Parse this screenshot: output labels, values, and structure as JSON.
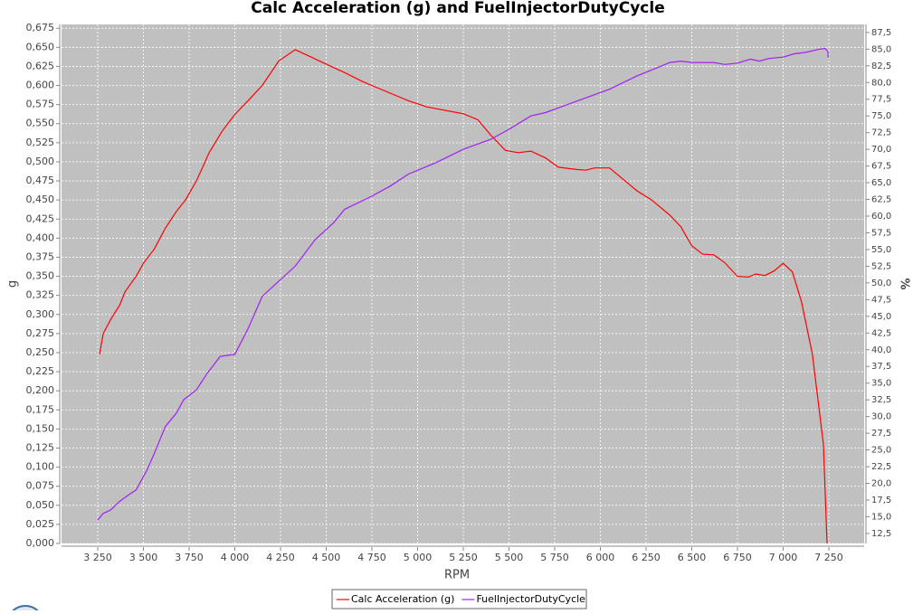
{
  "chart_data": {
    "type": "line",
    "title": "Calc Acceleration (g) and FuelInjectorDutyCycle",
    "x_label": "RPM",
    "y_label": "g",
    "y2_label": "%",
    "grid": true,
    "legend": "bottom",
    "xlim": [
      3052,
      7443
    ],
    "ylim": [
      0,
      0.68
    ],
    "y2lim": [
      11,
      88.7
    ],
    "xticks": [
      {
        "value": 3250,
        "label": "3 250"
      },
      {
        "value": 3500,
        "label": "3 500"
      },
      {
        "value": 3750,
        "label": "3 750"
      },
      {
        "value": 4000,
        "label": "4 000"
      },
      {
        "value": 4250,
        "label": "4 250"
      },
      {
        "value": 4500,
        "label": "4 500"
      },
      {
        "value": 4750,
        "label": "4 750"
      },
      {
        "value": 5000,
        "label": "5 000"
      },
      {
        "value": 5250,
        "label": "5 250"
      },
      {
        "value": 5500,
        "label": "5 500"
      },
      {
        "value": 5750,
        "label": "5 750"
      },
      {
        "value": 6000,
        "label": "6 000"
      },
      {
        "value": 6250,
        "label": "6 250"
      },
      {
        "value": 6500,
        "label": "6 500"
      },
      {
        "value": 6750,
        "label": "6 750"
      },
      {
        "value": 7000,
        "label": "7 000"
      },
      {
        "value": 7250,
        "label": "7 250"
      }
    ],
    "yticks": [
      {
        "value": 0,
        "label": "0,000"
      },
      {
        "value": 0.025,
        "label": "0,025"
      },
      {
        "value": 0.05,
        "label": "0,050"
      },
      {
        "value": 0.075,
        "label": "0,075"
      },
      {
        "value": 0.1,
        "label": "0,100"
      },
      {
        "value": 0.125,
        "label": "0,125"
      },
      {
        "value": 0.15,
        "label": "0,150"
      },
      {
        "value": 0.175,
        "label": "0,175"
      },
      {
        "value": 0.2,
        "label": "0,200"
      },
      {
        "value": 0.225,
        "label": "0,225"
      },
      {
        "value": 0.25,
        "label": "0,250"
      },
      {
        "value": 0.275,
        "label": "0,275"
      },
      {
        "value": 0.3,
        "label": "0,300"
      },
      {
        "value": 0.325,
        "label": "0,325"
      },
      {
        "value": 0.35,
        "label": "0,350"
      },
      {
        "value": 0.375,
        "label": "0,375"
      },
      {
        "value": 0.4,
        "label": "0,400"
      },
      {
        "value": 0.425,
        "label": "0,425"
      },
      {
        "value": 0.45,
        "label": "0,450"
      },
      {
        "value": 0.475,
        "label": "0,475"
      },
      {
        "value": 0.5,
        "label": "0,500"
      },
      {
        "value": 0.525,
        "label": "0,525"
      },
      {
        "value": 0.55,
        "label": "0,550"
      },
      {
        "value": 0.575,
        "label": "0,575"
      },
      {
        "value": 0.6,
        "label": "0,600"
      },
      {
        "value": 0.625,
        "label": "0,625"
      },
      {
        "value": 0.65,
        "label": "0,650"
      },
      {
        "value": 0.675,
        "label": "0,675"
      }
    ],
    "y2ticks": [
      {
        "value": 12.5,
        "label": "12,5"
      },
      {
        "value": 15,
        "label": "15,0"
      },
      {
        "value": 17.5,
        "label": "17,5"
      },
      {
        "value": 20,
        "label": "20,0"
      },
      {
        "value": 22.5,
        "label": "22,5"
      },
      {
        "value": 25,
        "label": "25,0"
      },
      {
        "value": 27.5,
        "label": "27,5"
      },
      {
        "value": 30,
        "label": "30,0"
      },
      {
        "value": 32.5,
        "label": "32,5"
      },
      {
        "value": 35,
        "label": "35,0"
      },
      {
        "value": 37.5,
        "label": "37,5"
      },
      {
        "value": 40,
        "label": "40,0"
      },
      {
        "value": 42.5,
        "label": "42,5"
      },
      {
        "value": 45,
        "label": "45,0"
      },
      {
        "value": 47.5,
        "label": "47,5"
      },
      {
        "value": 50,
        "label": "50,0"
      },
      {
        "value": 52.5,
        "label": "52,5"
      },
      {
        "value": 55,
        "label": "55,0"
      },
      {
        "value": 57.5,
        "label": "57,5"
      },
      {
        "value": 60,
        "label": "60,0"
      },
      {
        "value": 62.5,
        "label": "62,5"
      },
      {
        "value": 65,
        "label": "65,0"
      },
      {
        "value": 67.5,
        "label": "67,5"
      },
      {
        "value": 70,
        "label": "70,0"
      },
      {
        "value": 72.5,
        "label": "72,5"
      },
      {
        "value": 75,
        "label": "75,0"
      },
      {
        "value": 77.5,
        "label": "77,5"
      },
      {
        "value": 80,
        "label": "80,0"
      },
      {
        "value": 82.5,
        "label": "82,5"
      },
      {
        "value": 85,
        "label": "85,0"
      },
      {
        "value": 87.5,
        "label": "87,5"
      }
    ],
    "series": [
      {
        "name": "Calc Acceleration (g)",
        "color": "#ff0000",
        "x": [
          3260,
          3280,
          3320,
          3370,
          3400,
          3460,
          3500,
          3560,
          3620,
          3680,
          3730,
          3790,
          3860,
          3930,
          4000,
          4080,
          4150,
          4240,
          4330,
          4420,
          4500,
          4600,
          4700,
          4850,
          4950,
          5050,
          5250,
          5330,
          5400,
          5480,
          5550,
          5620,
          5700,
          5770,
          5870,
          5920,
          5970,
          6050,
          6200,
          6280,
          6380,
          6440,
          6500,
          6560,
          6620,
          6680,
          6750,
          6810,
          6850,
          6900,
          6950,
          7000,
          7050,
          7100,
          7160,
          7220,
          7240
        ],
        "values": [
          0.248,
          0.275,
          0.293,
          0.312,
          0.33,
          0.35,
          0.367,
          0.386,
          0.413,
          0.435,
          0.45,
          0.475,
          0.512,
          0.54,
          0.562,
          0.582,
          0.6,
          0.632,
          0.647,
          0.637,
          0.628,
          0.617,
          0.605,
          0.59,
          0.58,
          0.572,
          0.563,
          0.555,
          0.535,
          0.515,
          0.512,
          0.514,
          0.505,
          0.493,
          0.49,
          0.489,
          0.492,
          0.492,
          0.462,
          0.45,
          0.43,
          0.415,
          0.39,
          0.379,
          0.378,
          0.368,
          0.35,
          0.349,
          0.353,
          0.351,
          0.357,
          0.367,
          0.356,
          0.317,
          0.248,
          0.13,
          0
        ]
      },
      {
        "name": "FuelInjectorDutyCycle",
        "color": "#a020f0",
        "axis": "y2",
        "x": [
          3250,
          3280,
          3320,
          3370,
          3420,
          3460,
          3520,
          3560,
          3620,
          3680,
          3720,
          3790,
          3850,
          3920,
          4000,
          4070,
          4150,
          4250,
          4330,
          4440,
          4540,
          4600,
          4750,
          4850,
          4950,
          5100,
          5250,
          5400,
          5500,
          5620,
          5700,
          5800,
          5900,
          6050,
          6200,
          6300,
          6380,
          6440,
          6500,
          6550,
          6620,
          6680,
          6750,
          6820,
          6870,
          6920,
          7000,
          7060,
          7120,
          7200,
          7230,
          7245,
          7246
        ],
        "values": [
          14.5,
          15.5,
          16,
          17.3,
          18.3,
          19,
          22,
          24.5,
          28.5,
          30.5,
          32.5,
          34,
          36.5,
          39,
          39.3,
          43,
          48,
          50.5,
          52.5,
          56.5,
          59,
          61,
          63,
          64.5,
          66.3,
          68,
          70,
          71.5,
          73,
          75,
          75.5,
          76.5,
          77.5,
          79,
          81,
          82.1,
          83,
          83.2,
          83,
          83,
          83,
          82.7,
          82.9,
          83.5,
          83.2,
          83.6,
          83.8,
          84.3,
          84.5,
          85,
          85.1,
          84.6,
          83.7
        ]
      }
    ]
  }
}
